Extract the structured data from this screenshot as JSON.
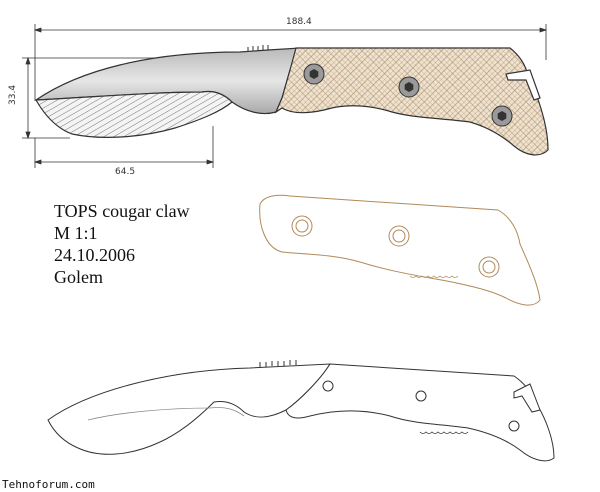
{
  "dimensions": {
    "overall_length": "188.4",
    "blade_height": "33.4",
    "blade_length": "64.5"
  },
  "info": {
    "title": "TOPS cougar claw",
    "scale": "M 1:1",
    "date": "24.10.2006",
    "author": "Golem"
  },
  "watermark": "Tehnoforum.com",
  "colors": {
    "handle_fill": "#efe3d0",
    "handle_outline": "#b08a5a",
    "blade_fill": "#d8d8d8",
    "edge_fill": "#f2f2f2",
    "line": "#333333"
  }
}
